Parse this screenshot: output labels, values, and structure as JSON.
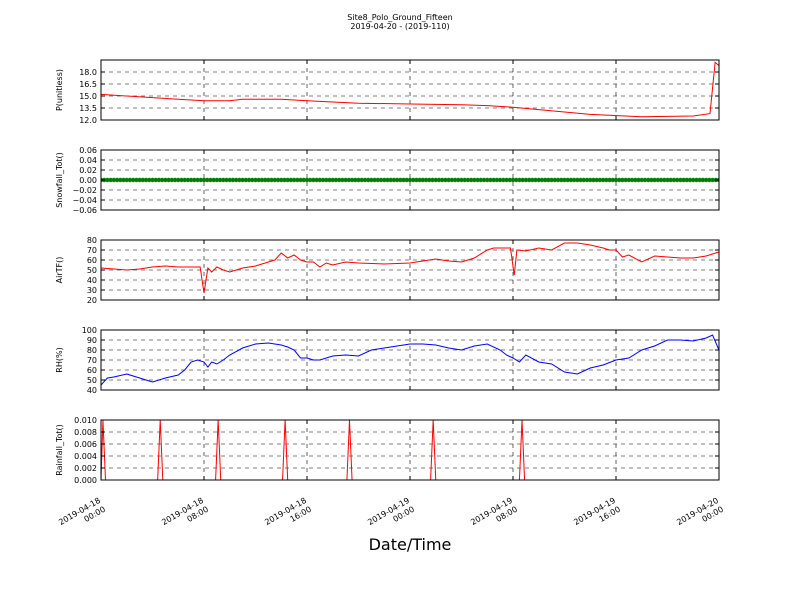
{
  "figure": {
    "title": "Site8_Polo_Ground_Fifteen",
    "subtitle": "2019-04-20 - (2019-110)",
    "xlabel": "Date/Time"
  },
  "chart_data": [
    {
      "type": "line",
      "ylabel": "P(unitless)",
      "ylim": [
        12.0,
        19.5
      ],
      "yticks": [
        12.0,
        13.5,
        15.0,
        16.5,
        18.0
      ],
      "ytick_labels": [
        "12.0",
        "13.5",
        "15.0",
        "16.5",
        "18.0"
      ],
      "xlim": [
        0,
        48
      ],
      "xticks": [
        0,
        8,
        16,
        24,
        32,
        40,
        48
      ],
      "xtick_labels": [
        "2019-04-18\n00:00",
        "2019-04-18\n08:00",
        "2019-04-18\n16:00",
        "2019-04-19\n00:00",
        "2019-04-19\n08:00",
        "2019-04-19\n16:00",
        "2019-04-20\n00:00"
      ],
      "grid": true,
      "series": [
        {
          "color": "#ff0000",
          "x": [
            0,
            4,
            6,
            8,
            10,
            11,
            14,
            16,
            20,
            24,
            28,
            30,
            32,
            36,
            38,
            42,
            46,
            47.3,
            47.7,
            48
          ],
          "y": [
            15.2,
            14.8,
            14.6,
            14.4,
            14.4,
            14.6,
            14.6,
            14.4,
            14.1,
            14.0,
            13.9,
            13.8,
            13.6,
            13.0,
            12.7,
            12.4,
            12.5,
            12.8,
            19.2,
            18.8
          ]
        }
      ]
    },
    {
      "type": "scatter",
      "ylabel": "Snowfall_Tot()",
      "ylim": [
        -0.06,
        0.06
      ],
      "yticks": [
        -0.06,
        -0.04,
        -0.02,
        0.0,
        0.02,
        0.04,
        0.06
      ],
      "ytick_labels": [
        "−0.06",
        "−0.04",
        "−0.02",
        "0.00",
        "0.02",
        "0.04",
        "0.06"
      ],
      "xlim": [
        0,
        48
      ],
      "xticks": [
        0,
        8,
        16,
        24,
        32,
        40,
        48
      ],
      "grid": true,
      "series": [
        {
          "color": "#008000",
          "x_start": 0,
          "x_end": 48,
          "x_step": 0.25,
          "y": 0.0
        }
      ]
    },
    {
      "type": "line",
      "ylabel": "AirTF()",
      "ylim": [
        20,
        80
      ],
      "yticks": [
        20,
        30,
        40,
        50,
        60,
        70,
        80
      ],
      "ytick_labels": [
        "20",
        "30",
        "40",
        "50",
        "60",
        "70",
        "80"
      ],
      "xlim": [
        0,
        48
      ],
      "xticks": [
        0,
        8,
        16,
        24,
        32,
        40,
        48
      ],
      "grid": true,
      "series": [
        {
          "color": "#ff0000",
          "x": [
            0,
            1,
            2,
            3,
            4,
            5,
            6,
            7,
            7.7,
            8.0,
            8.3,
            8.6,
            9,
            9.5,
            10,
            11,
            12,
            13,
            13.5,
            14,
            14.5,
            15,
            15.5,
            16,
            16.5,
            17,
            17.5,
            18,
            19,
            20,
            22,
            24,
            25,
            26,
            27,
            28,
            29,
            30,
            30.5,
            31,
            31.8,
            32.1,
            32.3,
            33,
            34,
            35,
            36,
            37,
            38,
            39,
            39.5,
            40,
            40.5,
            41,
            42,
            43,
            44,
            45,
            46,
            47,
            48
          ],
          "y": [
            52,
            51,
            50,
            51,
            53,
            54,
            53,
            53,
            53,
            27,
            52,
            48,
            53,
            50,
            48,
            52,
            54,
            58,
            60,
            67,
            62,
            65,
            60,
            58,
            58,
            53,
            57,
            55,
            58,
            57,
            56,
            57,
            59,
            61,
            59,
            58,
            62,
            70,
            72,
            72,
            72,
            45,
            70,
            69,
            72,
            70,
            77,
            77,
            75,
            72,
            70,
            70,
            63,
            65,
            58,
            64,
            63,
            62,
            62,
            64,
            68
          ]
        }
      ]
    },
    {
      "type": "line",
      "ylabel": "RH(%)",
      "ylim": [
        40,
        100
      ],
      "yticks": [
        40,
        50,
        60,
        70,
        80,
        90,
        100
      ],
      "ytick_labels": [
        "40",
        "50",
        "60",
        "70",
        "80",
        "90",
        "100"
      ],
      "xlim": [
        0,
        48
      ],
      "xticks": [
        0,
        8,
        16,
        24,
        32,
        40,
        48
      ],
      "grid": true,
      "series": [
        {
          "color": "#0000ff",
          "x": [
            0,
            0.5,
            1,
            2,
            3,
            4,
            5,
            6,
            6.5,
            7,
            7.5,
            8,
            8.3,
            8.6,
            9,
            9.5,
            10,
            11,
            12,
            13,
            14,
            14.5,
            15,
            15.5,
            16,
            16.5,
            17,
            18,
            19,
            20,
            21,
            22,
            24,
            25,
            26,
            27,
            27.5,
            28,
            29,
            30,
            31,
            31.5,
            32,
            32.5,
            33,
            34,
            35,
            36,
            36.5,
            37,
            38,
            39,
            40,
            41,
            42,
            43,
            44,
            45,
            46,
            47,
            47.5,
            48
          ],
          "y": [
            45,
            52,
            53,
            56,
            52,
            48,
            52,
            55,
            60,
            68,
            70,
            68,
            63,
            68,
            66,
            70,
            75,
            82,
            86,
            87,
            85,
            83,
            80,
            72,
            72,
            70,
            70,
            74,
            75,
            74,
            80,
            82,
            86,
            86,
            85,
            82,
            81,
            80,
            84,
            86,
            80,
            75,
            72,
            68,
            75,
            68,
            66,
            58,
            57,
            56,
            62,
            65,
            70,
            72,
            80,
            84,
            90,
            90,
            89,
            92,
            95,
            80
          ]
        }
      ]
    },
    {
      "type": "line",
      "ylabel": "Rainfall_Tot()",
      "ylim": [
        0.0,
        0.01
      ],
      "yticks": [
        0.0,
        0.002,
        0.004,
        0.006,
        0.008,
        0.01
      ],
      "ytick_labels": [
        "0.000",
        "0.002",
        "0.004",
        "0.006",
        "0.008",
        "0.010"
      ],
      "xlim": [
        0,
        48
      ],
      "xticks": [
        0,
        8,
        16,
        24,
        32,
        40,
        48
      ],
      "grid": true,
      "series": [
        {
          "color": "#ff0000",
          "x": [
            0,
            0.15,
            0.35,
            4.4,
            4.6,
            4.8,
            8.9,
            9.1,
            9.3,
            14.1,
            14.3,
            14.5,
            19.1,
            19.3,
            19.5,
            25.6,
            25.8,
            26.0,
            32.5,
            32.7,
            32.9,
            48
          ],
          "y": [
            0,
            0.01,
            0,
            0,
            0.01,
            0,
            0,
            0.01,
            0,
            0,
            0.01,
            0,
            0,
            0.01,
            0,
            0,
            0.01,
            0,
            0,
            0.01,
            0,
            0
          ]
        }
      ]
    }
  ]
}
